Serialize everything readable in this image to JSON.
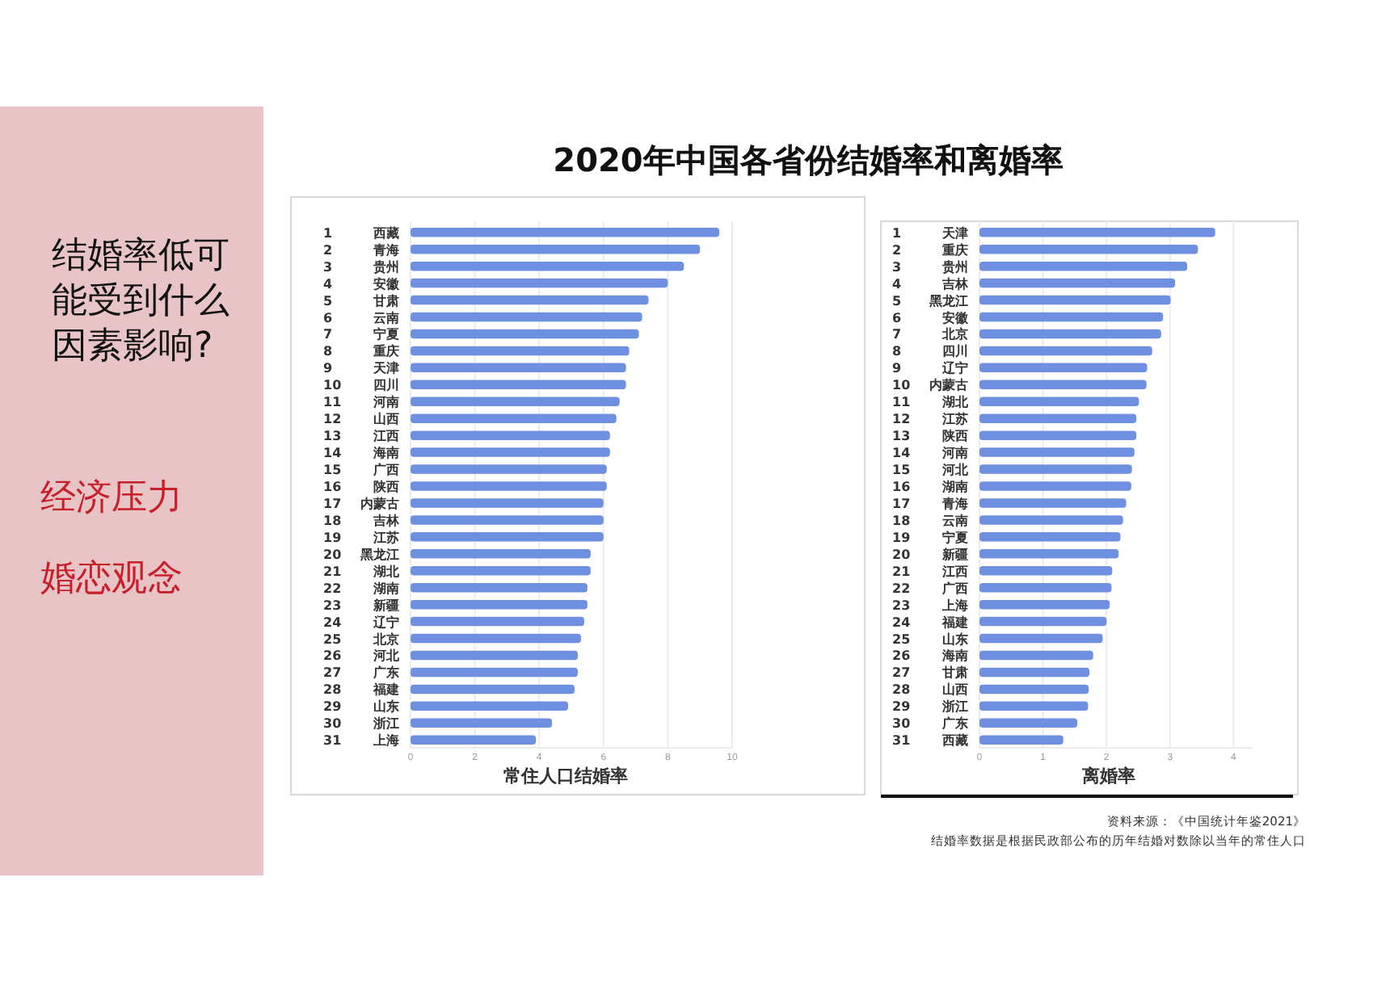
{
  "chart_data": [
    {
      "type": "other",
      "annotations": [
        "结婚率低可能受到什么因素影响?",
        "经济压力",
        "婚恋观念"
      ]
    },
    {
      "type": "bar",
      "orientation": "horizontal",
      "title": "2020年中国各省份结婚率和离婚率",
      "xlabel": "常住人口结婚率",
      "color": "#6f8fe0",
      "grid": "x",
      "xlim": [
        0,
        10
      ],
      "xticks": [
        0,
        2,
        4,
        6,
        8,
        10
      ],
      "categories": [
        "1 西藏",
        "2 青海",
        "3 贵州",
        "4 安徽",
        "5 甘肃",
        "6 云南",
        "7 宁夏",
        "8 重庆",
        "9 天津",
        "10 四川",
        "11 河南",
        "12 山西",
        "13 江西",
        "14 海南",
        "15 广西",
        "16 陕西",
        "17 内蒙古",
        "18 吉林",
        "19 江苏",
        "20 黑龙江",
        "21 湖北",
        "22 湖南",
        "23 新疆",
        "24 辽宁",
        "25 北京",
        "26 河北",
        "27 广东",
        "28 福建",
        "29 山东",
        "30 浙江",
        "31 上海"
      ],
      "values": [
        9.6,
        9.0,
        8.5,
        8.0,
        7.4,
        7.2,
        7.1,
        6.8,
        6.7,
        6.7,
        6.5,
        6.4,
        6.2,
        6.2,
        6.1,
        6.1,
        6.0,
        6.0,
        6.0,
        5.6,
        5.6,
        5.5,
        5.5,
        5.4,
        5.3,
        5.2,
        5.2,
        5.1,
        4.9,
        4.4,
        3.9
      ]
    },
    {
      "type": "bar",
      "orientation": "horizontal",
      "xlabel": "离婚率",
      "color": "#6f8fe0",
      "grid": "x",
      "xlim": [
        0,
        4.3
      ],
      "xticks": [
        0,
        1,
        2,
        3,
        4
      ],
      "categories": [
        "1 天津",
        "2 重庆",
        "3 贵州",
        "4 吉林",
        "5 黑龙江",
        "6 安徽",
        "7 北京",
        "8 四川",
        "9 辽宁",
        "10 内蒙古",
        "11 湖北",
        "12 江苏",
        "13 陕西",
        "14 河南",
        "15 河北",
        "16 湖南",
        "17 青海",
        "18 云南",
        "19 宁夏",
        "20 新疆",
        "21 江西",
        "22 广西",
        "23 上海",
        "24 福建",
        "25 山东",
        "26 海南",
        "27 甘肃",
        "28 山西",
        "29 浙江",
        "30 广东",
        "31 西藏"
      ],
      "values": [
        3.71,
        3.44,
        3.27,
        3.08,
        3.01,
        2.89,
        2.86,
        2.72,
        2.64,
        2.63,
        2.51,
        2.47,
        2.47,
        2.44,
        2.4,
        2.39,
        2.31,
        2.26,
        2.22,
        2.19,
        2.09,
        2.08,
        2.05,
        2.0,
        1.94,
        1.79,
        1.73,
        1.72,
        1.71,
        1.54,
        1.32
      ],
      "annotations": [
        "资料来源：《中国统计年鉴2021》",
        "结婚率数据是根据民政部公布的历年结婚对数除以当年的常住人口"
      ]
    }
  ]
}
